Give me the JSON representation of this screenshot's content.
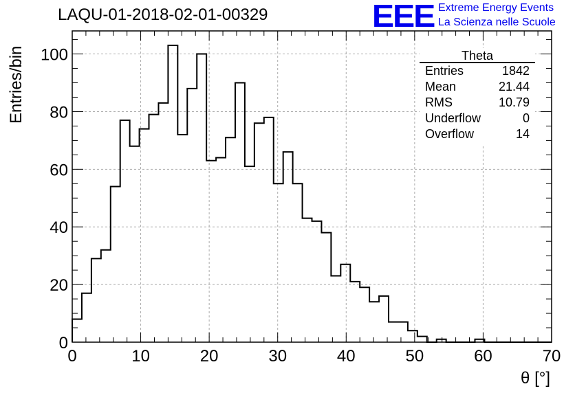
{
  "header": {
    "run_title": "LAQU-01-2018-02-01-00329",
    "logo_mark": "EEE",
    "logo_line1": "Extreme Energy Events",
    "logo_line2": "La Scienza nelle Scuole"
  },
  "stats_box": {
    "title": "Theta",
    "rows": [
      {
        "label": "Entries",
        "value": "1842"
      },
      {
        "label": "Mean",
        "value": "21.44"
      },
      {
        "label": "RMS",
        "value": "10.79"
      },
      {
        "label": "Underflow",
        "value": "0"
      },
      {
        "label": "Overflow",
        "value": "14"
      }
    ]
  },
  "chart_data": {
    "type": "histogram",
    "title": "LAQU-01-2018-02-01-00329",
    "xlabel": "θ [°]",
    "ylabel": "Entries/bin",
    "xlim": [
      0,
      70
    ],
    "ylim": [
      0,
      108
    ],
    "bin_width": 1.4,
    "x_ticks": [
      0,
      10,
      20,
      30,
      40,
      50,
      60,
      70
    ],
    "y_ticks": [
      0,
      20,
      40,
      60,
      80,
      100
    ],
    "grid": true,
    "values": [
      8,
      17,
      29,
      32,
      54,
      77,
      68,
      74,
      79,
      83,
      103,
      72,
      88,
      100,
      63,
      64,
      71,
      90,
      61,
      76,
      78,
      55,
      66,
      55,
      43,
      42,
      38,
      23,
      27,
      21,
      19,
      14,
      16,
      7,
      7,
      4,
      2,
      0,
      1,
      0,
      0,
      0,
      1,
      0,
      0,
      0,
      0,
      0,
      0,
      0
    ]
  }
}
